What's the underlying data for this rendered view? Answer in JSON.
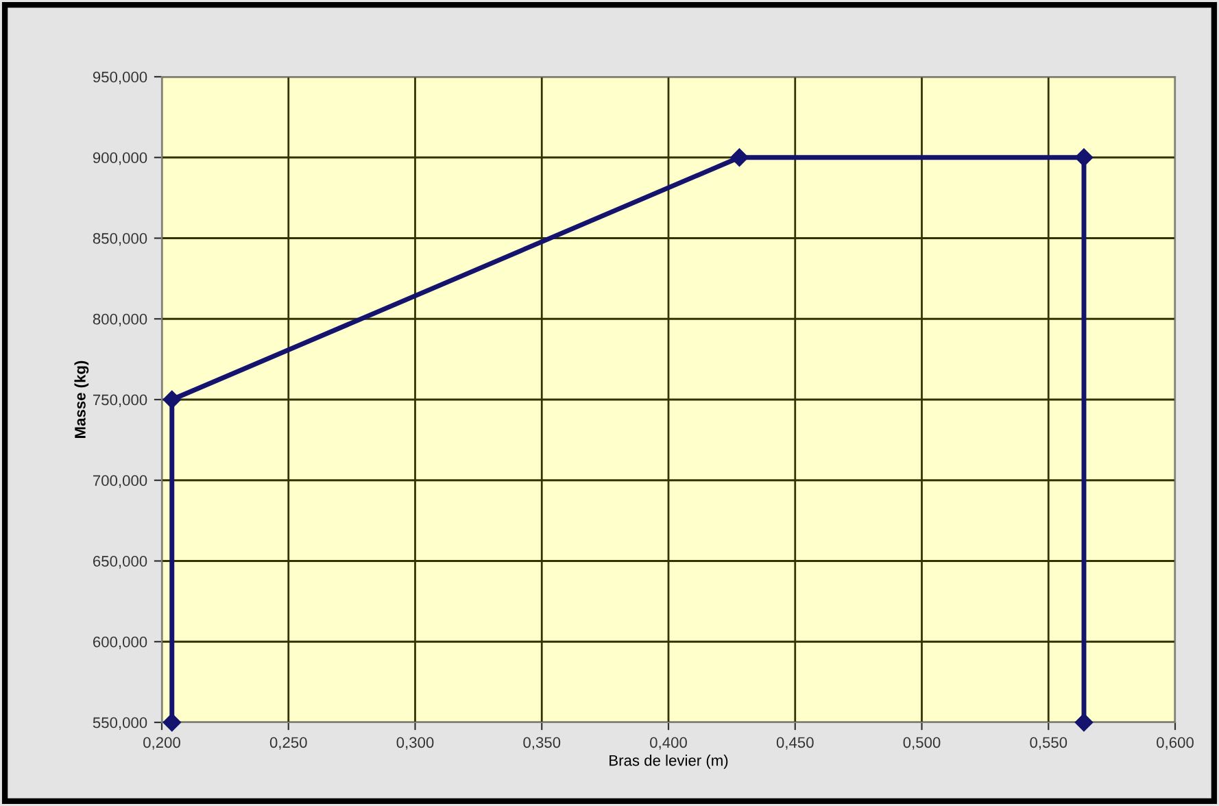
{
  "chart_data": {
    "type": "line",
    "xlabel": "Bras de levier (m)",
    "ylabel": "Masse (kg)",
    "x": [
      0.204,
      0.204,
      0.428,
      0.564,
      0.564
    ],
    "series": [
      {
        "color": "#14146e",
        "values": [
          550,
          750,
          900,
          900,
          550
        ]
      }
    ],
    "xlim": [
      0.2,
      0.6
    ],
    "ylim": [
      550,
      950
    ],
    "xticks": [
      {
        "value": 0.2,
        "label": "0,200"
      },
      {
        "value": 0.25,
        "label": "0,250"
      },
      {
        "value": 0.3,
        "label": "0,300"
      },
      {
        "value": 0.35,
        "label": "0,350"
      },
      {
        "value": 0.4,
        "label": "0,400"
      },
      {
        "value": 0.45,
        "label": "0,450"
      },
      {
        "value": 0.5,
        "label": "0,500"
      },
      {
        "value": 0.55,
        "label": "0,550"
      },
      {
        "value": 0.6,
        "label": "0,600"
      }
    ],
    "yticks": [
      {
        "value": 550,
        "label": "550,000"
      },
      {
        "value": 600,
        "label": "600,000"
      },
      {
        "value": 650,
        "label": "650,000"
      },
      {
        "value": 700,
        "label": "700,000"
      },
      {
        "value": 750,
        "label": "750,000"
      },
      {
        "value": 800,
        "label": "800,000"
      },
      {
        "value": 850,
        "label": "850,000"
      },
      {
        "value": 900,
        "label": "900,000"
      },
      {
        "value": 950,
        "label": "950,000"
      }
    ],
    "grid": true,
    "marker": "diamond",
    "line_style": "solid",
    "legend": false
  }
}
